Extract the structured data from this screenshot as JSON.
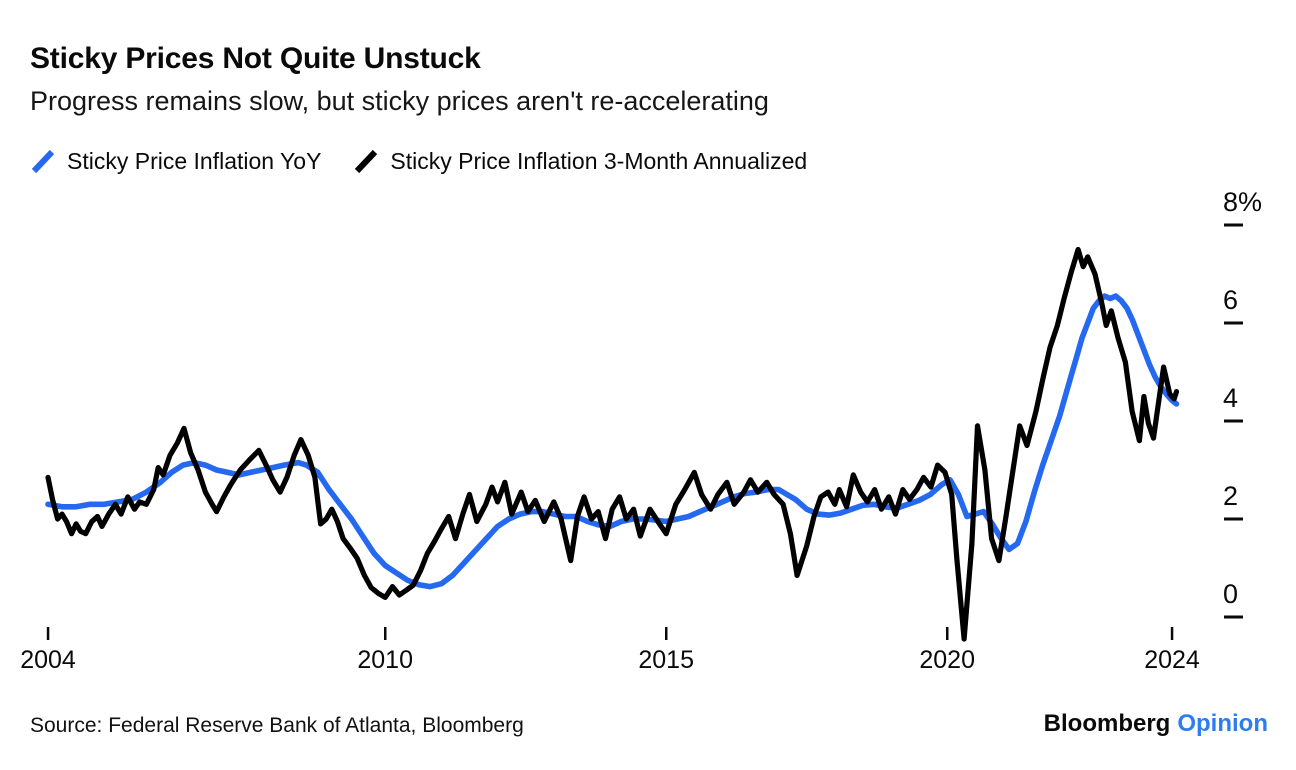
{
  "header": {
    "title": "Sticky Prices Not Quite Unstuck",
    "subtitle": "Progress remains slow, but sticky prices aren't re-accelerating"
  },
  "legend": [
    {
      "label": "Sticky Price Inflation YoY",
      "color": "#2569f0"
    },
    {
      "label": "Sticky Price Inflation 3-Month Annualized",
      "color": "#000000"
    }
  ],
  "source": "Source: Federal Reserve Bank of Atlanta, Bloomberg",
  "branding": {
    "name": "Bloomberg",
    "product": "Opinion",
    "product_color": "#2e7df0"
  },
  "chart_data": {
    "type": "line",
    "title": "Sticky Prices Not Quite Unstuck",
    "subtitle": "Progress remains slow, but sticky prices aren't re-accelerating",
    "x_axis": {
      "ticks": [
        2004,
        2010,
        2015,
        2020,
        2024
      ],
      "range": [
        2004,
        2024.4
      ],
      "grid": false
    },
    "y_axis": {
      "ticks": [
        0,
        2,
        4,
        6,
        8
      ],
      "unit": "%",
      "range": [
        -0.8,
        8.3
      ],
      "side": "right",
      "grid": false
    },
    "series": [
      {
        "name": "Sticky Price Inflation YoY",
        "color": "#2569f0",
        "width": 5.6,
        "points": [
          [
            2004.0,
            2.3
          ],
          [
            2004.25,
            2.25
          ],
          [
            2004.5,
            2.25
          ],
          [
            2004.75,
            2.3
          ],
          [
            2005.0,
            2.3
          ],
          [
            2005.25,
            2.35
          ],
          [
            2005.5,
            2.4
          ],
          [
            2005.75,
            2.55
          ],
          [
            2006.0,
            2.75
          ],
          [
            2006.2,
            2.95
          ],
          [
            2006.4,
            3.1
          ],
          [
            2006.6,
            3.15
          ],
          [
            2006.8,
            3.1
          ],
          [
            2007.0,
            3.0
          ],
          [
            2007.2,
            2.95
          ],
          [
            2007.4,
            2.9
          ],
          [
            2007.6,
            2.95
          ],
          [
            2007.8,
            3.0
          ],
          [
            2008.0,
            3.05
          ],
          [
            2008.2,
            3.1
          ],
          [
            2008.45,
            3.15
          ],
          [
            2008.6,
            3.1
          ],
          [
            2008.8,
            2.95
          ],
          [
            2009.0,
            2.6
          ],
          [
            2009.2,
            2.3
          ],
          [
            2009.4,
            2.0
          ],
          [
            2009.6,
            1.65
          ],
          [
            2009.8,
            1.3
          ],
          [
            2010.0,
            1.05
          ],
          [
            2010.2,
            0.9
          ],
          [
            2010.4,
            0.75
          ],
          [
            2010.6,
            0.66
          ],
          [
            2010.8,
            0.62
          ],
          [
            2011.0,
            0.68
          ],
          [
            2011.2,
            0.85
          ],
          [
            2011.4,
            1.1
          ],
          [
            2011.6,
            1.35
          ],
          [
            2011.8,
            1.6
          ],
          [
            2012.0,
            1.85
          ],
          [
            2012.2,
            2.0
          ],
          [
            2012.4,
            2.1
          ],
          [
            2012.6,
            2.15
          ],
          [
            2012.8,
            2.15
          ],
          [
            2013.0,
            2.1
          ],
          [
            2013.2,
            2.05
          ],
          [
            2013.4,
            2.05
          ],
          [
            2013.6,
            1.95
          ],
          [
            2013.8,
            1.88
          ],
          [
            2014.0,
            1.85
          ],
          [
            2014.2,
            1.95
          ],
          [
            2014.4,
            2.0
          ],
          [
            2014.6,
            2.0
          ],
          [
            2014.8,
            1.98
          ],
          [
            2015.0,
            1.95
          ],
          [
            2015.2,
            2.0
          ],
          [
            2015.4,
            2.05
          ],
          [
            2015.6,
            2.15
          ],
          [
            2015.8,
            2.25
          ],
          [
            2016.0,
            2.35
          ],
          [
            2016.2,
            2.45
          ],
          [
            2016.4,
            2.52
          ],
          [
            2016.6,
            2.55
          ],
          [
            2016.8,
            2.6
          ],
          [
            2017.0,
            2.6
          ],
          [
            2017.15,
            2.5
          ],
          [
            2017.3,
            2.4
          ],
          [
            2017.5,
            2.2
          ],
          [
            2017.7,
            2.1
          ],
          [
            2017.9,
            2.08
          ],
          [
            2018.1,
            2.12
          ],
          [
            2018.3,
            2.2
          ],
          [
            2018.5,
            2.28
          ],
          [
            2018.7,
            2.3
          ],
          [
            2018.9,
            2.25
          ],
          [
            2019.1,
            2.22
          ],
          [
            2019.3,
            2.3
          ],
          [
            2019.5,
            2.38
          ],
          [
            2019.7,
            2.5
          ],
          [
            2019.9,
            2.7
          ],
          [
            2020.05,
            2.8
          ],
          [
            2020.2,
            2.5
          ],
          [
            2020.35,
            2.05
          ],
          [
            2020.5,
            2.1
          ],
          [
            2020.65,
            2.15
          ],
          [
            2020.8,
            1.9
          ],
          [
            2020.95,
            1.62
          ],
          [
            2021.1,
            1.38
          ],
          [
            2021.25,
            1.5
          ],
          [
            2021.4,
            1.95
          ],
          [
            2021.55,
            2.55
          ],
          [
            2021.7,
            3.1
          ],
          [
            2021.85,
            3.6
          ],
          [
            2022.0,
            4.1
          ],
          [
            2022.1,
            4.5
          ],
          [
            2022.2,
            4.9
          ],
          [
            2022.3,
            5.3
          ],
          [
            2022.4,
            5.7
          ],
          [
            2022.5,
            6.0
          ],
          [
            2022.6,
            6.3
          ],
          [
            2022.7,
            6.45
          ],
          [
            2022.8,
            6.55
          ],
          [
            2022.9,
            6.5
          ],
          [
            2023.0,
            6.55
          ],
          [
            2023.1,
            6.45
          ],
          [
            2023.2,
            6.3
          ],
          [
            2023.3,
            6.05
          ],
          [
            2023.4,
            5.75
          ],
          [
            2023.5,
            5.45
          ],
          [
            2023.6,
            5.15
          ],
          [
            2023.7,
            4.9
          ],
          [
            2023.8,
            4.7
          ],
          [
            2023.9,
            4.55
          ],
          [
            2024.0,
            4.42
          ],
          [
            2024.08,
            4.35
          ]
        ]
      },
      {
        "name": "Sticky Price Inflation 3-Month Annualized",
        "color": "#000000",
        "width": 5.2,
        "points": [
          [
            2004.0,
            2.85
          ],
          [
            2004.08,
            2.4
          ],
          [
            2004.17,
            2.0
          ],
          [
            2004.25,
            2.1
          ],
          [
            2004.33,
            1.95
          ],
          [
            2004.42,
            1.7
          ],
          [
            2004.5,
            1.9
          ],
          [
            2004.58,
            1.75
          ],
          [
            2004.67,
            1.7
          ],
          [
            2004.78,
            1.95
          ],
          [
            2004.88,
            2.05
          ],
          [
            2004.96,
            1.85
          ],
          [
            2005.08,
            2.1
          ],
          [
            2005.2,
            2.3
          ],
          [
            2005.3,
            2.1
          ],
          [
            2005.42,
            2.45
          ],
          [
            2005.54,
            2.2
          ],
          [
            2005.63,
            2.35
          ],
          [
            2005.75,
            2.3
          ],
          [
            2005.88,
            2.6
          ],
          [
            2005.96,
            3.05
          ],
          [
            2006.05,
            2.9
          ],
          [
            2006.17,
            3.3
          ],
          [
            2006.3,
            3.55
          ],
          [
            2006.42,
            3.85
          ],
          [
            2006.54,
            3.35
          ],
          [
            2006.67,
            3.0
          ],
          [
            2006.8,
            2.55
          ],
          [
            2006.92,
            2.3
          ],
          [
            2007.0,
            2.15
          ],
          [
            2007.13,
            2.45
          ],
          [
            2007.25,
            2.7
          ],
          [
            2007.42,
            3.0
          ],
          [
            2007.58,
            3.2
          ],
          [
            2007.75,
            3.4
          ],
          [
            2007.88,
            3.1
          ],
          [
            2008.0,
            2.8
          ],
          [
            2008.13,
            2.55
          ],
          [
            2008.25,
            2.85
          ],
          [
            2008.38,
            3.3
          ],
          [
            2008.5,
            3.62
          ],
          [
            2008.63,
            3.3
          ],
          [
            2008.75,
            2.85
          ],
          [
            2008.85,
            1.9
          ],
          [
            2008.95,
            2.0
          ],
          [
            2009.05,
            2.2
          ],
          [
            2009.15,
            1.95
          ],
          [
            2009.25,
            1.6
          ],
          [
            2009.38,
            1.4
          ],
          [
            2009.5,
            1.2
          ],
          [
            2009.63,
            0.85
          ],
          [
            2009.75,
            0.6
          ],
          [
            2009.88,
            0.48
          ],
          [
            2010.0,
            0.4
          ],
          [
            2010.13,
            0.62
          ],
          [
            2010.25,
            0.45
          ],
          [
            2010.38,
            0.55
          ],
          [
            2010.5,
            0.65
          ],
          [
            2010.63,
            0.95
          ],
          [
            2010.75,
            1.3
          ],
          [
            2010.88,
            1.55
          ],
          [
            2011.0,
            1.8
          ],
          [
            2011.13,
            2.05
          ],
          [
            2011.25,
            1.6
          ],
          [
            2011.38,
            2.1
          ],
          [
            2011.5,
            2.5
          ],
          [
            2011.63,
            1.95
          ],
          [
            2011.79,
            2.3
          ],
          [
            2011.9,
            2.65
          ],
          [
            2012.0,
            2.35
          ],
          [
            2012.13,
            2.75
          ],
          [
            2012.25,
            2.1
          ],
          [
            2012.42,
            2.55
          ],
          [
            2012.54,
            2.15
          ],
          [
            2012.67,
            2.38
          ],
          [
            2012.83,
            1.95
          ],
          [
            2013.0,
            2.35
          ],
          [
            2013.13,
            2.0
          ],
          [
            2013.3,
            1.15
          ],
          [
            2013.42,
            2.05
          ],
          [
            2013.54,
            2.45
          ],
          [
            2013.67,
            2.0
          ],
          [
            2013.79,
            2.15
          ],
          [
            2013.92,
            1.6
          ],
          [
            2014.04,
            2.2
          ],
          [
            2014.17,
            2.45
          ],
          [
            2014.29,
            2.0
          ],
          [
            2014.42,
            2.2
          ],
          [
            2014.54,
            1.65
          ],
          [
            2014.71,
            2.2
          ],
          [
            2014.88,
            1.9
          ],
          [
            2015.0,
            1.7
          ],
          [
            2015.17,
            2.3
          ],
          [
            2015.33,
            2.6
          ],
          [
            2015.5,
            2.95
          ],
          [
            2015.63,
            2.5
          ],
          [
            2015.79,
            2.2
          ],
          [
            2015.92,
            2.5
          ],
          [
            2016.08,
            2.75
          ],
          [
            2016.21,
            2.3
          ],
          [
            2016.38,
            2.55
          ],
          [
            2016.5,
            2.8
          ],
          [
            2016.63,
            2.55
          ],
          [
            2016.79,
            2.75
          ],
          [
            2016.92,
            2.5
          ],
          [
            2017.08,
            2.3
          ],
          [
            2017.21,
            1.7
          ],
          [
            2017.33,
            0.85
          ],
          [
            2017.5,
            1.45
          ],
          [
            2017.63,
            2.05
          ],
          [
            2017.75,
            2.45
          ],
          [
            2017.88,
            2.55
          ],
          [
            2018.0,
            2.3
          ],
          [
            2018.08,
            2.6
          ],
          [
            2018.21,
            2.25
          ],
          [
            2018.33,
            2.9
          ],
          [
            2018.46,
            2.55
          ],
          [
            2018.58,
            2.35
          ],
          [
            2018.71,
            2.6
          ],
          [
            2018.83,
            2.2
          ],
          [
            2018.96,
            2.45
          ],
          [
            2019.08,
            2.1
          ],
          [
            2019.21,
            2.6
          ],
          [
            2019.33,
            2.4
          ],
          [
            2019.46,
            2.6
          ],
          [
            2019.58,
            2.85
          ],
          [
            2019.71,
            2.65
          ],
          [
            2019.83,
            3.1
          ],
          [
            2019.96,
            2.95
          ],
          [
            2020.08,
            2.5
          ],
          [
            2020.17,
            1.2
          ],
          [
            2020.3,
            -0.45
          ],
          [
            2020.44,
            1.5
          ],
          [
            2020.54,
            3.9
          ],
          [
            2020.67,
            3.0
          ],
          [
            2020.79,
            1.6
          ],
          [
            2020.92,
            1.15
          ],
          [
            2021.04,
            2.0
          ],
          [
            2021.17,
            3.0
          ],
          [
            2021.29,
            3.9
          ],
          [
            2021.42,
            3.5
          ],
          [
            2021.58,
            4.2
          ],
          [
            2021.71,
            4.9
          ],
          [
            2021.83,
            5.5
          ],
          [
            2021.96,
            5.95
          ],
          [
            2022.08,
            6.5
          ],
          [
            2022.21,
            7.05
          ],
          [
            2022.33,
            7.5
          ],
          [
            2022.42,
            7.15
          ],
          [
            2022.5,
            7.35
          ],
          [
            2022.63,
            7.0
          ],
          [
            2022.75,
            6.4
          ],
          [
            2022.83,
            5.95
          ],
          [
            2022.92,
            6.25
          ],
          [
            2023.04,
            5.7
          ],
          [
            2023.17,
            5.2
          ],
          [
            2023.29,
            4.2
          ],
          [
            2023.42,
            3.6
          ],
          [
            2023.5,
            4.5
          ],
          [
            2023.58,
            3.95
          ],
          [
            2023.67,
            3.65
          ],
          [
            2023.75,
            4.3
          ],
          [
            2023.85,
            5.1
          ],
          [
            2023.96,
            4.55
          ],
          [
            2024.04,
            4.45
          ],
          [
            2024.08,
            4.6
          ]
        ]
      }
    ]
  }
}
